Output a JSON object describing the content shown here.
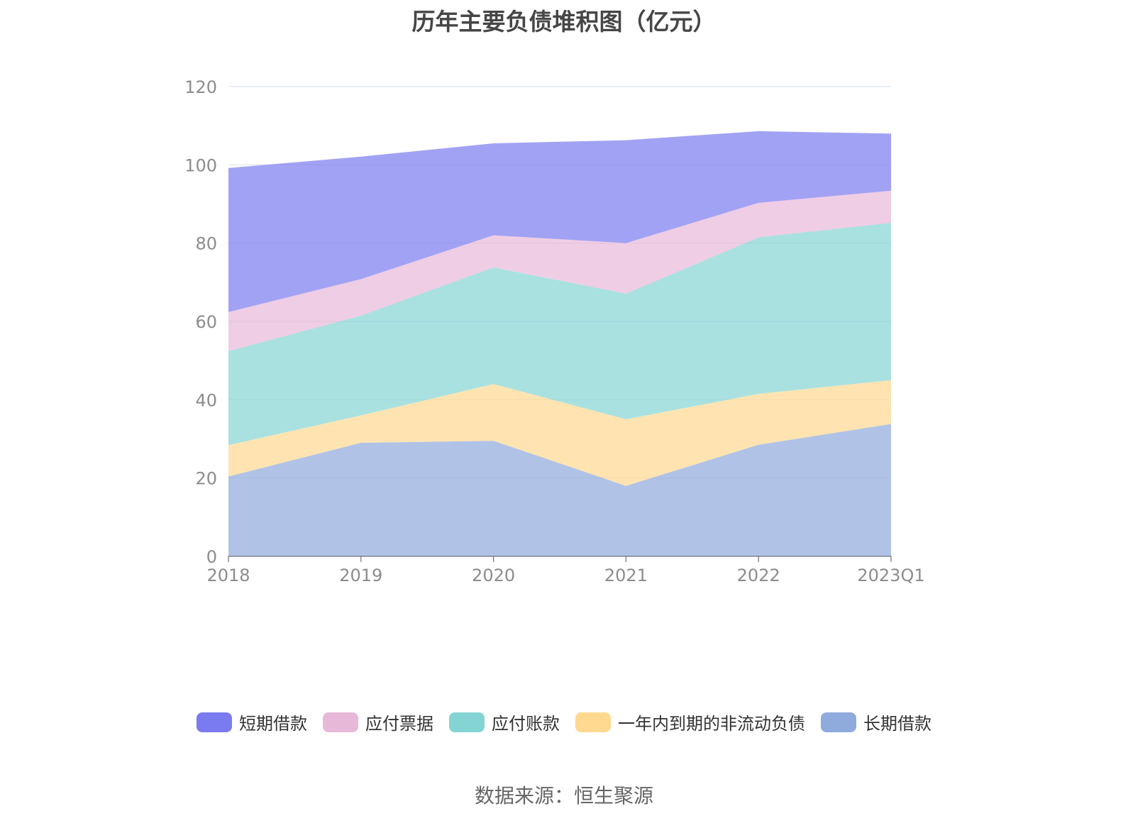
{
  "chart_data": {
    "type": "area",
    "stacked": true,
    "title": "历年主要负债堆积图（亿元）",
    "categories": [
      "2018",
      "2019",
      "2020",
      "2021",
      "2022",
      "2023Q1"
    ],
    "ylim": [
      0,
      120
    ],
    "yticks": [
      0,
      20,
      40,
      60,
      80,
      100,
      120
    ],
    "grid": true,
    "legend_position": "bottom",
    "series": [
      {
        "name": "长期借款",
        "color": "#8faadc",
        "values": [
          20.4,
          29.0,
          29.5,
          18.0,
          28.5,
          33.8
        ]
      },
      {
        "name": "一年内到期的非流动负债",
        "color": "#ffd990",
        "values": [
          8.0,
          7.0,
          14.5,
          17.0,
          13.0,
          11.2
        ]
      },
      {
        "name": "应付账款",
        "color": "#85d4d4",
        "values": [
          24.0,
          25.5,
          29.8,
          32.1,
          40.0,
          40.2
        ]
      },
      {
        "name": "应付票据",
        "color": "#e8b8d8",
        "values": [
          10.0,
          9.3,
          8.2,
          12.9,
          8.8,
          8.2
        ]
      },
      {
        "name": "短期借款",
        "color": "#7b7bf0",
        "values": [
          36.8,
          31.3,
          23.5,
          26.3,
          18.3,
          14.6
        ]
      }
    ]
  },
  "legend_order": [
    "短期借款",
    "应付票据",
    "应付账款",
    "一年内到期的非流动负债",
    "长期借款"
  ],
  "source": "数据来源：恒生聚源"
}
